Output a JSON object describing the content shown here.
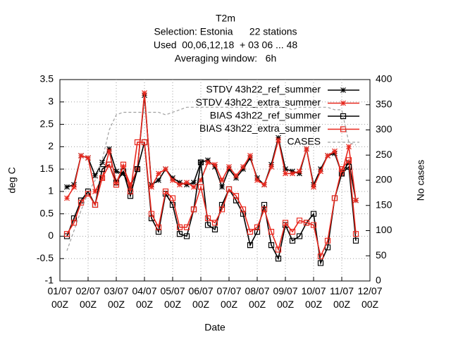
{
  "chart_data": {
    "type": "line",
    "title": "T2m",
    "subtitle": [
      "Selection: Estonia      22 stations",
      "Used  00,06,12,18  + 03 06 ... 48",
      "Averaging window:   6h"
    ],
    "xlabel": "Date",
    "ylabel": "deg C",
    "y2label": "No cases",
    "x": [
      "01/07 06Z",
      "01/07 12Z",
      "01/07 18Z",
      "02/07 00Z",
      "02/07 06Z",
      "02/07 12Z",
      "02/07 18Z",
      "03/07 00Z",
      "03/07 06Z",
      "03/07 12Z",
      "03/07 18Z",
      "04/07 00Z",
      "04/07 06Z",
      "04/07 12Z",
      "04/07 18Z",
      "05/07 00Z",
      "05/07 06Z",
      "05/07 12Z",
      "05/07 18Z",
      "06/07 00Z",
      "06/07 06Z",
      "06/07 12Z",
      "06/07 18Z",
      "07/07 00Z",
      "07/07 06Z",
      "07/07 12Z",
      "07/07 18Z",
      "08/07 00Z",
      "08/07 06Z",
      "08/07 12Z",
      "08/07 18Z",
      "09/07 00Z",
      "09/07 06Z",
      "09/07 12Z",
      "09/07 18Z",
      "10/07 00Z",
      "10/07 06Z",
      "10/07 12Z",
      "10/07 18Z",
      "11/07 00Z",
      "11/07 06Z",
      "11/07 12Z"
    ],
    "xlim": [
      "01/07 00Z",
      "12/07 00Z"
    ],
    "xticks": [
      {
        "value": "01/07 00Z",
        "label": "01/07\n00Z"
      },
      {
        "value": "02/07 00Z",
        "label": "02/07\n00Z"
      },
      {
        "value": "03/07 00Z",
        "label": "03/07\n00Z"
      },
      {
        "value": "04/07 00Z",
        "label": "04/07\n00Z"
      },
      {
        "value": "05/07 00Z",
        "label": "05/07\n00Z"
      },
      {
        "value": "06/07 00Z",
        "label": "06/07\n00Z"
      },
      {
        "value": "07/07 00Z",
        "label": "07/07\n00Z"
      },
      {
        "value": "08/07 00Z",
        "label": "08/07\n00Z"
      },
      {
        "value": "09/07 00Z",
        "label": "09/07\n00Z"
      },
      {
        "value": "10/07 00Z",
        "label": "10/07\n00Z"
      },
      {
        "value": "11/07 00Z",
        "label": "11/07\n00Z"
      },
      {
        "value": "12/07 00Z",
        "label": "12/07\n00Z"
      }
    ],
    "ylim": [
      -1,
      3.5
    ],
    "yticks": [
      -1,
      -0.5,
      0,
      0.5,
      1,
      1.5,
      2,
      2.5,
      3,
      3.5
    ],
    "y2lim": [
      0,
      400
    ],
    "y2ticks": [
      0,
      50,
      100,
      150,
      200,
      250,
      300,
      350,
      400
    ],
    "grid": true,
    "legend": "top-right",
    "series": [
      {
        "name": "STDV 43h22_ref_summer",
        "color": "#000000",
        "marker": "star",
        "values": [
          1.1,
          1.15,
          1.8,
          1.75,
          1.35,
          1.65,
          1.95,
          1.45,
          1.4,
          1.1,
          1.5,
          3.15,
          1.15,
          1.25,
          1.5,
          1.3,
          1.2,
          1.15,
          1.2,
          1.65,
          1.7,
          1.55,
          1.1,
          1.5,
          1.3,
          1.5,
          1.75,
          1.3,
          1.15,
          1.6,
          2.2,
          1.5,
          1.45,
          1.4,
          1.95,
          1.15,
          1.5,
          1.8,
          1.85,
          1.4,
          1.65,
          0.8
        ]
      },
      {
        "name": "STDV 43h22_extra_summer",
        "color": "#e8281e",
        "marker": "star",
        "values": [
          0.85,
          1.1,
          1.8,
          1.75,
          1.0,
          1.3,
          1.9,
          1.2,
          1.55,
          1.15,
          1.5,
          3.2,
          1.1,
          1.4,
          1.5,
          1.25,
          1.15,
          1.2,
          1.1,
          1.25,
          1.65,
          1.6,
          1.25,
          1.55,
          1.35,
          1.55,
          1.8,
          1.25,
          1.15,
          1.55,
          2.15,
          1.4,
          1.4,
          1.45,
          1.95,
          1.1,
          1.45,
          1.8,
          1.9,
          1.4,
          2.0,
          0.8
        ]
      },
      {
        "name": "BIAS 43h22_ref_summer",
        "color": "#000000",
        "marker": "square",
        "values": [
          0.0,
          0.4,
          0.8,
          1.0,
          0.7,
          1.5,
          1.6,
          1.2,
          1.45,
          0.9,
          1.5,
          2.1,
          0.4,
          0.1,
          0.95,
          0.7,
          0.05,
          0.0,
          0.6,
          1.65,
          0.25,
          0.15,
          0.7,
          1.05,
          0.8,
          0.5,
          -0.2,
          0.1,
          0.7,
          -0.2,
          -0.5,
          0.25,
          -0.1,
          0.0,
          0.3,
          0.5,
          -0.6,
          -0.25,
          0.85,
          1.4,
          1.55,
          -0.1
        ]
      },
      {
        "name": "BIAS 43h22_extra_summer",
        "color": "#e8281e",
        "marker": "square",
        "values": [
          0.05,
          0.3,
          0.75,
          0.95,
          0.7,
          1.3,
          1.6,
          1.15,
          1.6,
          1.0,
          2.1,
          2.1,
          0.5,
          0.2,
          1.0,
          0.85,
          0.2,
          0.2,
          0.6,
          1.1,
          0.4,
          0.3,
          0.6,
          1.05,
          0.9,
          0.6,
          0.1,
          0.2,
          0.6,
          0.1,
          -0.3,
          0.3,
          0.1,
          0.35,
          0.3,
          0.25,
          -0.45,
          -0.1,
          0.85,
          1.5,
          1.7,
          0.05
        ]
      },
      {
        "name": "CASES",
        "color": "#a0a0a0",
        "marker": "none",
        "dash": true,
        "axis": "y2",
        "values": [
          60,
          100,
          140,
          175,
          200,
          240,
          300,
          330,
          335,
          335,
          335,
          335,
          335,
          335,
          330,
          335,
          340,
          345,
          345,
          345,
          345,
          345,
          345,
          345,
          345,
          345,
          345,
          345,
          345,
          345,
          345,
          345,
          340,
          345,
          345,
          345,
          345,
          345,
          340,
          340,
          275,
          270
        ]
      }
    ]
  }
}
